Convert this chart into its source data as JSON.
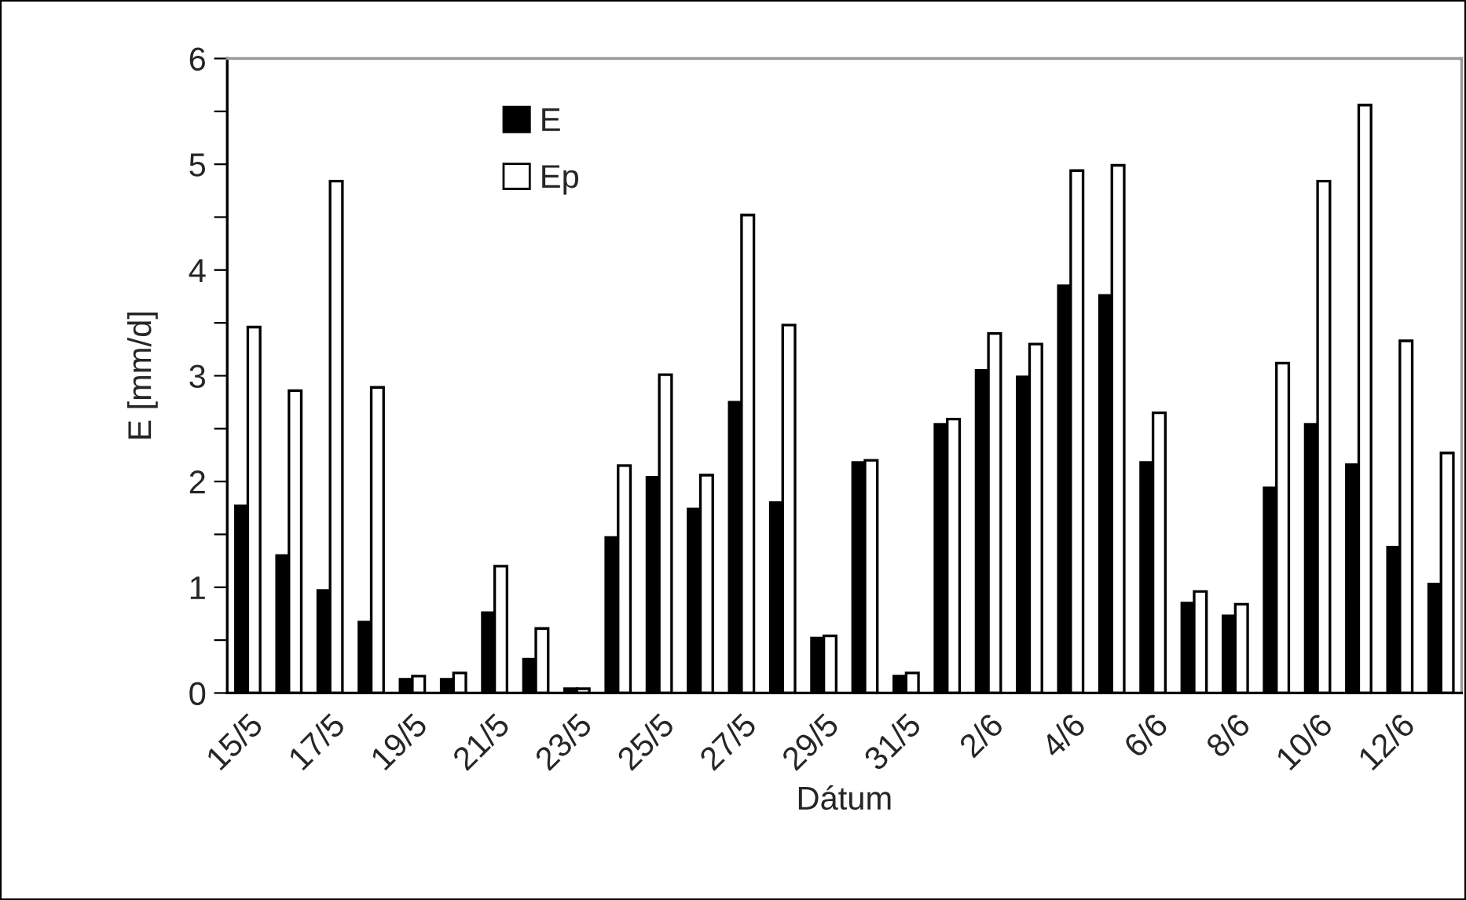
{
  "chart_data": {
    "type": "bar",
    "xlabel": "Dátum",
    "ylabel": "E [mm/d]",
    "categories": [
      "15/5",
      null,
      "17/5",
      null,
      "19/5",
      null,
      "21/5",
      null,
      "23/5",
      null,
      "25/5",
      null,
      "27/5",
      null,
      "29/5",
      null,
      "31/5",
      null,
      "2/6",
      null,
      "4/6",
      null,
      "6/6",
      null,
      "8/6",
      null,
      "10/6",
      null,
      "12/6",
      null
    ],
    "series": [
      {
        "name": "E",
        "color": "#000000",
        "values": [
          1.77,
          1.3,
          0.97,
          0.67,
          0.13,
          0.13,
          0.76,
          0.32,
          0.04,
          1.47,
          2.04,
          1.74,
          2.75,
          1.8,
          0.52,
          2.18,
          0.16,
          2.54,
          3.05,
          2.99,
          3.85,
          3.76,
          2.18,
          0.85,
          0.73,
          1.94,
          2.54,
          2.16,
          1.38,
          1.03
        ]
      },
      {
        "name": "Ep",
        "color": "#ffffff",
        "values": [
          3.46,
          2.86,
          4.84,
          2.89,
          0.16,
          0.19,
          1.2,
          0.61,
          0.04,
          2.15,
          3.01,
          2.06,
          4.52,
          3.48,
          0.54,
          2.2,
          0.19,
          2.59,
          3.4,
          3.3,
          4.94,
          4.99,
          2.65,
          0.96,
          0.84,
          3.12,
          4.84,
          5.56,
          3.33,
          2.27
        ]
      }
    ],
    "ylim": [
      0,
      6
    ],
    "yticks": [
      0,
      {
        "value": 0.5,
        "label": null
      },
      1,
      {
        "value": 1.5,
        "label": null
      },
      2,
      {
        "value": 2.5,
        "label": null
      },
      3,
      {
        "value": 3.5,
        "label": null
      },
      4,
      {
        "value": 4.5,
        "label": null
      },
      5,
      {
        "value": 5.5,
        "label": null
      },
      6
    ],
    "grid": false,
    "legend": "top left"
  }
}
